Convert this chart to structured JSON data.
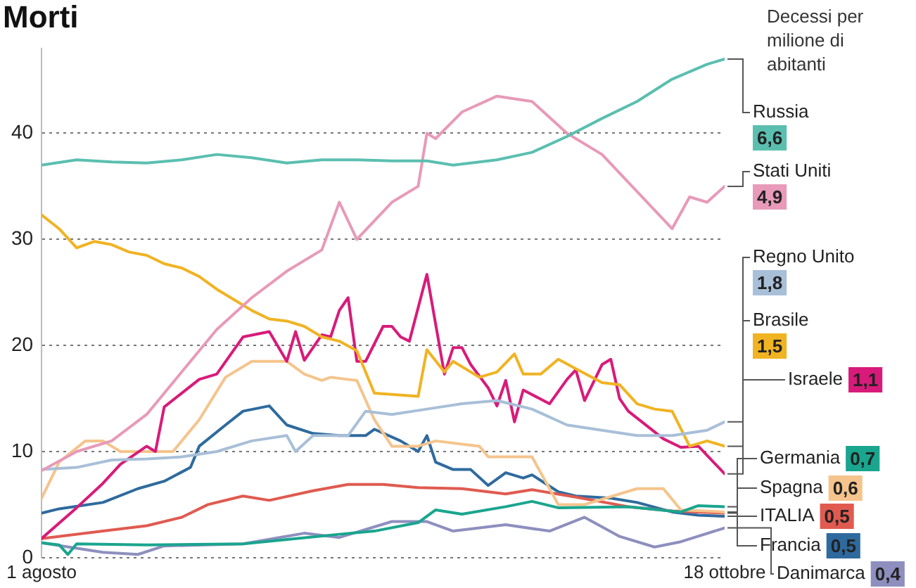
{
  "chart_data": {
    "type": "line",
    "title": "Morti",
    "ylabel": "Decessi per milione di abitanti",
    "xlim": [
      "--08-01",
      "--10-18"
    ],
    "xticks": [
      {
        "value": "--08-01",
        "label": "1 agosto"
      },
      {
        "value": "--10-18",
        "label": "18 ottobre"
      }
    ],
    "ylim": [
      0,
      48
    ],
    "yticks": [
      0,
      10,
      20,
      30,
      40
    ],
    "grid": "y",
    "legend": "right",
    "marker": "none",
    "line_style": "solid",
    "series": [
      {
        "name": "Russia",
        "color": "#5bbfb0",
        "x": [
          "--08-01",
          "--08-05",
          "--08-09",
          "--08-13",
          "--08-17",
          "--08-21",
          "--08-25",
          "--08-29",
          "--09-02",
          "--09-06",
          "--09-10",
          "--09-14",
          "--09-17",
          "--09-22",
          "--09-26",
          "--09-30",
          "--10-04",
          "--10-08",
          "--10-12",
          "--10-16",
          "--10-18"
        ],
        "values": [
          37,
          37.5,
          37.3,
          37.2,
          37.5,
          38,
          37.7,
          37.2,
          37.5,
          37.5,
          37.4,
          37.4,
          37,
          37.5,
          38.2,
          39.7,
          41.4,
          43,
          45.1,
          46.5,
          47
        ]
      },
      {
        "name": "Stati Uniti",
        "color": "#e89ab8",
        "x": [
          "--08-01",
          "--08-05",
          "--08-09",
          "--08-13",
          "--08-17",
          "--08-21",
          "--08-25",
          "--08-29",
          "--09-02",
          "--09-04",
          "--09-06",
          "--09-10",
          "--09-13",
          "--09-14",
          "--09-15",
          "--09-18",
          "--09-22",
          "--09-26",
          "--09-30",
          "--10-04",
          "--10-08",
          "--10-12",
          "--10-14",
          "--10-16",
          "--10-18"
        ],
        "values": [
          8.2,
          10,
          11,
          13.5,
          17.5,
          21.5,
          24.5,
          27,
          29,
          33.5,
          30,
          33.5,
          35,
          40,
          39.5,
          42,
          43.5,
          43,
          40,
          38,
          34.5,
          31,
          34,
          33.5,
          35
        ]
      },
      {
        "name": "Regno Unito",
        "color": "#a8bfd8",
        "x": [
          "--08-01",
          "--08-05",
          "--08-09",
          "--08-13",
          "--08-17",
          "--08-21",
          "--08-25",
          "--08-29",
          "--08-30",
          "--09-01",
          "--09-05",
          "--09-07",
          "--09-10",
          "--09-14",
          "--09-18",
          "--09-22",
          "--09-26",
          "--09-30",
          "--10-04",
          "--10-08",
          "--10-12",
          "--10-16",
          "--10-18"
        ],
        "values": [
          8.3,
          8.5,
          9.2,
          9.3,
          9.5,
          10,
          11,
          11.5,
          10,
          11.5,
          11.5,
          13.8,
          13.5,
          14,
          14.5,
          14.8,
          14,
          12.5,
          12,
          11.5,
          11.5,
          12,
          12.8
        ]
      },
      {
        "name": "Brasile",
        "color": "#f0b323",
        "x": [
          "--08-01",
          "--08-03",
          "--08-05",
          "--08-07",
          "--08-09",
          "--08-11",
          "--08-13",
          "--08-15",
          "--08-17",
          "--08-19",
          "--08-21",
          "--08-23",
          "--08-25",
          "--08-27",
          "--08-29",
          "--08-31",
          "--09-02",
          "--09-04",
          "--09-06",
          "--09-08",
          "--09-13",
          "--09-14",
          "--09-16",
          "--09-17",
          "--09-20",
          "--09-22",
          "--09-24",
          "--09-25",
          "--09-27",
          "--09-29",
          "--10-01",
          "--10-04",
          "--10-06",
          "--10-08",
          "--10-10",
          "--10-12",
          "--10-14",
          "--10-16",
          "--10-18"
        ],
        "values": [
          32.3,
          31,
          29.2,
          29.8,
          29.5,
          28.8,
          28.5,
          27.7,
          27.3,
          26.5,
          25.3,
          24.3,
          23.3,
          22.5,
          22.3,
          21.8,
          20.8,
          20.4,
          19.5,
          15.5,
          15.2,
          19.6,
          17.5,
          18.5,
          17,
          17.5,
          19.2,
          17.3,
          17.3,
          18.7,
          17.8,
          16.5,
          16.3,
          14.5,
          14,
          13.8,
          10.5,
          11,
          10.5
        ]
      },
      {
        "name": "Israele",
        "color": "#d81b7a",
        "x": [
          "--08-01",
          "--08-05",
          "--08-08",
          "--08-10",
          "--08-13",
          "--08-14",
          "--08-15",
          "--08-19",
          "--08-21",
          "--08-24",
          "--08-27",
          "--08-29",
          "--08-30",
          "--08-31",
          "--09-02",
          "--09-03",
          "--09-04",
          "--09-05",
          "--09-06",
          "--09-07",
          "--09-09",
          "--09-10",
          "--09-11",
          "--09-12",
          "--09-14",
          "--09-16",
          "--09-17",
          "--09-18",
          "--09-19",
          "--09-21",
          "--09-22",
          "--09-23",
          "--09-24",
          "--09-25",
          "--09-28",
          "--09-30",
          "--10-01",
          "--10-02",
          "--10-04",
          "--10-05",
          "--10-06",
          "--10-07",
          "--10-11",
          "--10-13",
          "--10-15",
          "--10-18"
        ],
        "values": [
          1.8,
          4.7,
          7,
          8.8,
          10.5,
          10,
          14.2,
          16.8,
          17.3,
          20.8,
          21.3,
          18.5,
          21.3,
          18.6,
          21,
          20.8,
          23.3,
          24.5,
          18.5,
          18.5,
          21.8,
          21.8,
          20.8,
          20.4,
          26.7,
          17.3,
          19.8,
          19.8,
          18.2,
          16,
          14.3,
          16.7,
          12.8,
          15.8,
          14.5,
          16.8,
          17.7,
          14.8,
          18.2,
          18.7,
          15,
          13.8,
          11.2,
          10.4,
          10.5,
          7.9
        ]
      },
      {
        "name": "Germania",
        "color": "#1aa58e",
        "x": [
          "--08-01",
          "--08-03",
          "--08-04",
          "--08-05",
          "--08-13",
          "--08-24",
          "--09-04",
          "--09-08",
          "--09-13",
          "--09-15",
          "--09-18",
          "--09-23",
          "--09-26",
          "--09-29",
          "--10-07",
          "--10-13",
          "--10-15",
          "--10-18"
        ],
        "values": [
          1.4,
          1.2,
          0.3,
          1.3,
          1.2,
          1.3,
          2.2,
          2.5,
          3.3,
          4.5,
          4.1,
          4.8,
          5.3,
          4.7,
          4.8,
          4.3,
          4.9,
          4.8
        ]
      },
      {
        "name": "Spagna",
        "color": "#f5c48c",
        "x": [
          "--08-01",
          "--08-03",
          "--08-06",
          "--08-08",
          "--08-10",
          "--08-16",
          "--08-19",
          "--08-22",
          "--08-25",
          "--08-29",
          "--08-31",
          "--09-02",
          "--09-03",
          "--09-06",
          "--09-08",
          "--09-10",
          "--09-13",
          "--09-15",
          "--09-20",
          "--09-21",
          "--09-26",
          "--09-29",
          "--10-02",
          "--10-08",
          "--10-11",
          "--10-13",
          "--10-18"
        ],
        "values": [
          5.6,
          9,
          11,
          11,
          10,
          10,
          13,
          17,
          18.5,
          18.5,
          17.3,
          16.7,
          17,
          16.7,
          13,
          10.5,
          10.5,
          11,
          10.5,
          9.5,
          9.5,
          5,
          5,
          6.5,
          6.5,
          4.5,
          4.3
        ]
      },
      {
        "name": "ITALIA",
        "color": "#e05a50",
        "x": [
          "--08-01",
          "--08-08",
          "--08-13",
          "--08-17",
          "--08-20",
          "--08-24",
          "--08-27",
          "--09-01",
          "--09-05",
          "--09-09",
          "--09-13",
          "--09-18",
          "--09-23",
          "--09-26",
          "--10-01",
          "--10-07",
          "--10-12",
          "--10-18"
        ],
        "values": [
          1.8,
          2.5,
          3,
          3.8,
          5,
          5.8,
          5.4,
          6.3,
          6.9,
          6.9,
          6.6,
          6.5,
          6,
          6.4,
          5.7,
          4.8,
          4.4,
          4.2
        ]
      },
      {
        "name": "Francia",
        "color": "#2e6a9e",
        "x": [
          "--08-01",
          "--08-03",
          "--08-08",
          "--08-12",
          "--08-15",
          "--08-18",
          "--08-19",
          "--08-22",
          "--08-24",
          "--08-27",
          "--08-29",
          "--09-01",
          "--09-04",
          "--09-07",
          "--09-08",
          "--09-11",
          "--09-13",
          "--09-14",
          "--09-15",
          "--09-17",
          "--09-19",
          "--09-21",
          "--09-23",
          "--09-25",
          "--09-26",
          "--09-29",
          "--10-01",
          "--10-05",
          "--10-08",
          "--10-12",
          "--10-15",
          "--10-18"
        ],
        "values": [
          4.2,
          4.6,
          5.2,
          6.5,
          7.2,
          8.5,
          10.5,
          12.5,
          13.8,
          14.3,
          12.5,
          11.7,
          11.5,
          11.5,
          12.1,
          11,
          10,
          11.5,
          9,
          8.3,
          8.3,
          6.8,
          8,
          7.5,
          7.8,
          6.2,
          5.8,
          5.6,
          5.2,
          4.3,
          4,
          3.9
        ]
      },
      {
        "name": "Danimarca",
        "color": "#8e8fbf",
        "x": [
          "--08-01",
          "--08-08",
          "--08-12",
          "--08-15",
          "--08-24",
          "--08-31",
          "--09-04",
          "--09-10",
          "--09-14",
          "--09-17",
          "--09-23",
          "--09-28",
          "--10-02",
          "--10-06",
          "--10-10",
          "--10-13",
          "--10-18"
        ],
        "values": [
          1.4,
          0.5,
          0.3,
          1.1,
          1.3,
          2.3,
          1.9,
          3.4,
          3.4,
          2.5,
          3.1,
          2.5,
          3.8,
          2,
          1,
          1.5,
          2.8
        ]
      }
    ],
    "annotations": [
      "6,6",
      "4,9",
      "1,8",
      "1,5",
      "1,1",
      "0,7",
      "0,6",
      "0,5",
      "0,5",
      "0,4"
    ]
  }
}
